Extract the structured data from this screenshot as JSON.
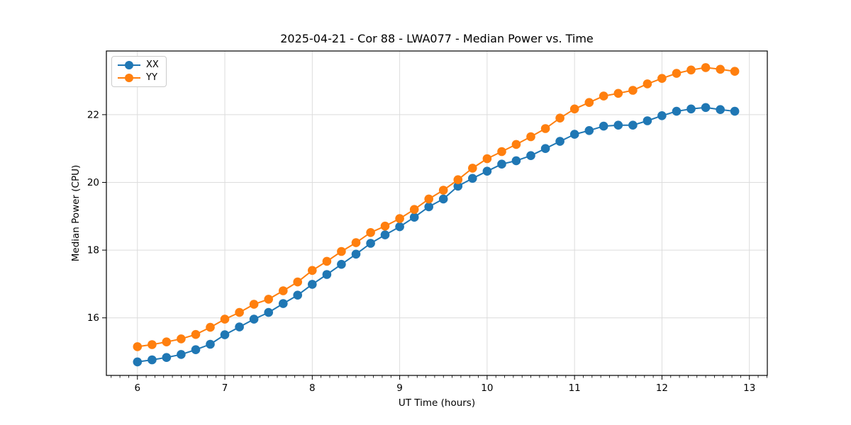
{
  "figure": {
    "title": "2025-04-21 - Cor 88 - LWA077 - Median Power vs. Time",
    "xlabel": "UT Time (hours)",
    "ylabel": "Median Power (CPU)"
  },
  "legend": {
    "entries": [
      {
        "label": "XX",
        "color": "#1f77b4"
      },
      {
        "label": "YY",
        "color": "#ff7f0e"
      }
    ]
  },
  "chart_data": {
    "type": "line",
    "title": "2025-04-21 - Cor 88 - LWA077 - Median Power vs. Time",
    "xlabel": "UT Time (hours)",
    "ylabel": "Median Power (CPU)",
    "grid": true,
    "legend_position": "upper left",
    "xlim": [
      5.645,
      13.205
    ],
    "ylim": [
      14.3,
      23.88
    ],
    "xticks": [
      6,
      7,
      8,
      9,
      10,
      11,
      12,
      13
    ],
    "yticks": [
      16,
      18,
      20,
      22
    ],
    "x_minor_step": 0.1,
    "x": [
      6.0,
      6.167,
      6.333,
      6.5,
      6.667,
      6.833,
      7.0,
      7.167,
      7.333,
      7.5,
      7.667,
      7.833,
      8.0,
      8.167,
      8.333,
      8.5,
      8.667,
      8.833,
      9.0,
      9.167,
      9.333,
      9.5,
      9.667,
      9.833,
      10.0,
      10.167,
      10.333,
      10.5,
      10.667,
      10.833,
      11.0,
      11.167,
      11.333,
      11.5,
      11.667,
      11.833,
      12.0,
      12.167,
      12.333,
      12.5,
      12.667,
      12.833
    ],
    "series": [
      {
        "name": "XX",
        "color": "#1f77b4",
        "marker": "circle",
        "values": [
          14.7,
          14.76,
          14.83,
          14.92,
          15.06,
          15.22,
          15.5,
          15.73,
          15.96,
          16.16,
          16.42,
          16.67,
          16.99,
          17.28,
          17.58,
          17.88,
          18.2,
          18.45,
          18.69,
          18.97,
          19.28,
          19.51,
          19.89,
          20.12,
          20.33,
          20.54,
          20.64,
          20.79,
          21.0,
          21.21,
          21.42,
          21.53,
          21.66,
          21.69,
          21.69,
          21.82,
          21.97,
          22.1,
          22.17,
          22.21,
          22.15,
          22.1
        ]
      },
      {
        "name": "YY",
        "color": "#ff7f0e",
        "marker": "circle",
        "values": [
          15.15,
          15.21,
          15.29,
          15.38,
          15.51,
          15.72,
          15.96,
          16.16,
          16.4,
          16.55,
          16.8,
          17.06,
          17.4,
          17.67,
          17.96,
          18.22,
          18.52,
          18.71,
          18.93,
          19.2,
          19.51,
          19.77,
          20.08,
          20.42,
          20.7,
          20.91,
          21.12,
          21.35,
          21.59,
          21.9,
          22.17,
          22.36,
          22.55,
          22.63,
          22.72,
          22.91,
          23.07,
          23.22,
          23.32,
          23.39,
          23.34,
          23.28
        ]
      }
    ]
  }
}
